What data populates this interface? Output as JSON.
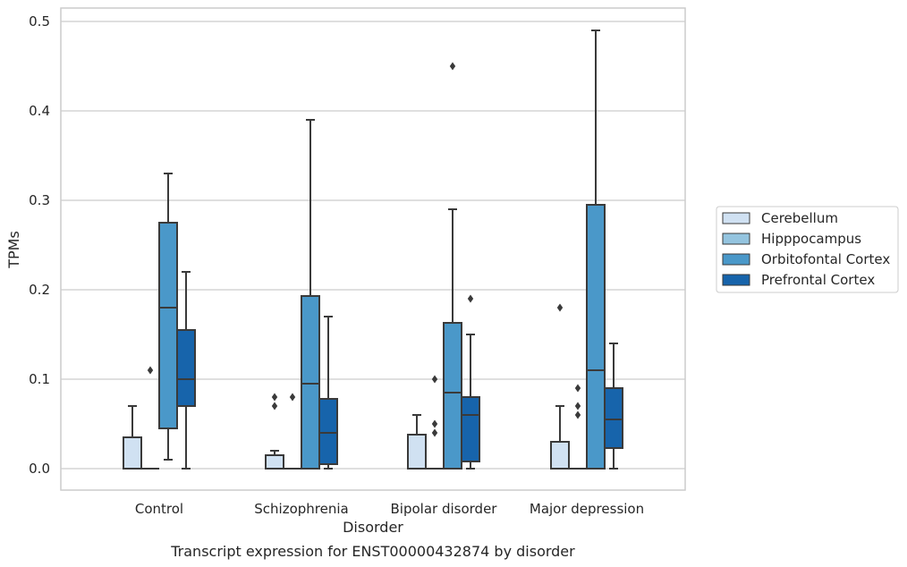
{
  "chart_data": {
    "type": "box",
    "title": "",
    "caption": "Transcript expression for ENST00000432874 by disorder",
    "xlabel": "Disorder",
    "ylabel": "TPMs",
    "ylim": [
      -0.023,
      0.515
    ],
    "yticks": [
      "0.0",
      "0.1",
      "0.2",
      "0.3",
      "0.4",
      "0.5"
    ],
    "grid": "horizontal",
    "legend_position": "right",
    "categories": [
      "Control",
      "Schizophrenia",
      "Bipolar disorder",
      "Major depression"
    ],
    "series": [
      {
        "name": "Cerebellum",
        "color": "#d0e1f2",
        "boxes": [
          {
            "whislo": 0.0,
            "q1": 0.0,
            "med": 0.0,
            "q3": 0.035,
            "whishi": 0.07,
            "fliers": []
          },
          {
            "whislo": 0.0,
            "q1": 0.0,
            "med": 0.0,
            "q3": 0.015,
            "whishi": 0.02,
            "fliers": [
              0.08,
              0.07
            ]
          },
          {
            "whislo": 0.0,
            "q1": 0.0,
            "med": 0.0,
            "q3": 0.038,
            "whishi": 0.06,
            "fliers": []
          },
          {
            "whislo": 0.0,
            "q1": 0.0,
            "med": 0.0,
            "q3": 0.03,
            "whishi": 0.07,
            "fliers": [
              0.18
            ]
          }
        ]
      },
      {
        "name": "Hipppocampus",
        "color": "#94c4df",
        "boxes": [
          {
            "whislo": 0.0,
            "q1": 0.0,
            "med": 0.0,
            "q3": 0.0,
            "whishi": 0.0,
            "fliers": [
              0.11
            ]
          },
          {
            "whislo": 0.0,
            "q1": 0.0,
            "med": 0.0,
            "q3": 0.0,
            "whishi": 0.0,
            "fliers": [
              0.08
            ]
          },
          {
            "whislo": 0.0,
            "q1": 0.0,
            "med": 0.0,
            "q3": 0.0,
            "whishi": 0.0,
            "fliers": [
              0.1,
              0.05,
              0.04
            ]
          },
          {
            "whislo": 0.0,
            "q1": 0.0,
            "med": 0.0,
            "q3": 0.0,
            "whishi": 0.0,
            "fliers": [
              0.09,
              0.07,
              0.06
            ]
          }
        ]
      },
      {
        "name": "Orbitofontal Cortex",
        "color": "#4a98c9",
        "boxes": [
          {
            "whislo": 0.01,
            "q1": 0.045,
            "med": 0.18,
            "q3": 0.275,
            "whishi": 0.33,
            "fliers": []
          },
          {
            "whislo": 0.0,
            "q1": 0.0,
            "med": 0.095,
            "q3": 0.193,
            "whishi": 0.39,
            "fliers": []
          },
          {
            "whislo": 0.0,
            "q1": 0.0,
            "med": 0.085,
            "q3": 0.163,
            "whishi": 0.29,
            "fliers": [
              0.45
            ]
          },
          {
            "whislo": 0.0,
            "q1": 0.0,
            "med": 0.11,
            "q3": 0.295,
            "whishi": 0.49,
            "fliers": []
          }
        ]
      },
      {
        "name": "Prefrontal Cortex",
        "color": "#1764ab",
        "boxes": [
          {
            "whislo": 0.0,
            "q1": 0.07,
            "med": 0.1,
            "q3": 0.155,
            "whishi": 0.22,
            "fliers": []
          },
          {
            "whislo": 0.0,
            "q1": 0.005,
            "med": 0.04,
            "q3": 0.078,
            "whishi": 0.17,
            "fliers": []
          },
          {
            "whislo": 0.0,
            "q1": 0.008,
            "med": 0.06,
            "q3": 0.08,
            "whishi": 0.15,
            "fliers": [
              0.19
            ]
          },
          {
            "whislo": 0.0,
            "q1": 0.023,
            "med": 0.055,
            "q3": 0.09,
            "whishi": 0.14,
            "fliers": []
          }
        ]
      }
    ],
    "colors": {
      "grid": "#cccccc",
      "frame": "#cccccc",
      "box_edge": "#3a3a3a"
    }
  }
}
